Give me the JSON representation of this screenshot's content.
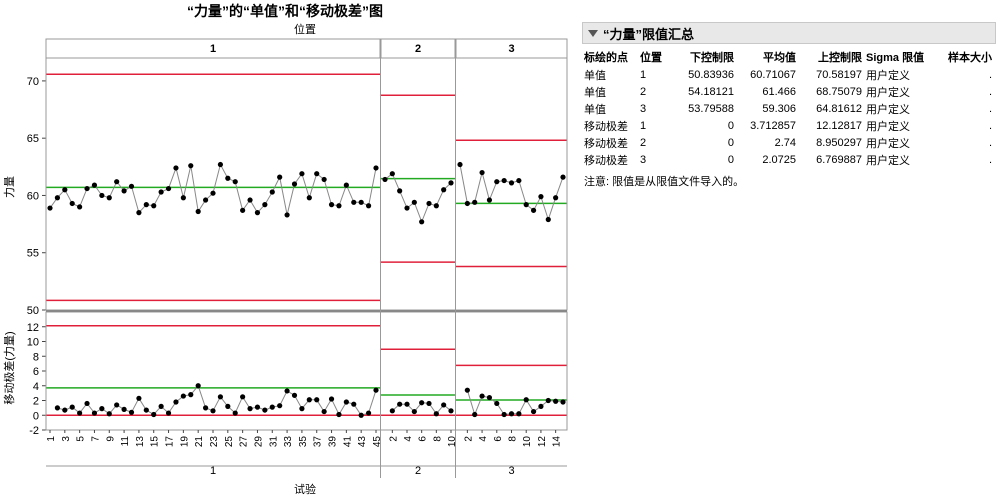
{
  "title": "“力量”的“单值”和“移动极差”图",
  "colors": {
    "limit": "#e0203a",
    "center": "#22aa22",
    "series": "#888888",
    "point": "#000000",
    "grid": "#bbbbbb"
  },
  "chart_data": {
    "type": "line",
    "title": "“力量”的“单值”和“移动极差”图",
    "group_axis_title": "位置",
    "xlabel": "试验",
    "phases": [
      {
        "label": "1",
        "x_ticks": [
          "1",
          "3",
          "5",
          "7",
          "9",
          "11",
          "13",
          "15",
          "17",
          "19",
          "21",
          "23",
          "25",
          "27",
          "29",
          "31",
          "33",
          "35",
          "37",
          "39",
          "41",
          "43",
          "45"
        ]
      },
      {
        "label": "2",
        "x_ticks": [
          "2",
          "4",
          "6",
          "8",
          "10"
        ]
      },
      {
        "label": "3",
        "x_ticks": [
          "2",
          "4",
          "6",
          "8",
          "10",
          "12",
          "14"
        ]
      }
    ],
    "individuals": {
      "ylabel": "力量",
      "y_ticks": [
        "50",
        "55",
        "60",
        "65",
        "70"
      ],
      "ylim": [
        50,
        72
      ],
      "phases": [
        {
          "lcl": 50.84,
          "avg": 60.71,
          "ucl": 70.58,
          "values": [
            58.9,
            59.8,
            60.5,
            59.3,
            59.0,
            60.6,
            60.9,
            60.0,
            59.8,
            61.2,
            60.4,
            60.8,
            58.5,
            59.2,
            59.1,
            60.3,
            60.6,
            62.4,
            59.8,
            62.6,
            58.6,
            59.6,
            60.2,
            62.7,
            61.5,
            61.2,
            58.7,
            59.6,
            58.5,
            59.2,
            60.3,
            61.6,
            58.3,
            61.0,
            61.9,
            59.8,
            61.9,
            61.4,
            59.2,
            59.1,
            60.9,
            59.4,
            59.4,
            59.1,
            62.4
          ]
        },
        {
          "lcl": 54.18,
          "avg": 61.47,
          "ucl": 68.75,
          "values": [
            61.4,
            61.9,
            60.4,
            58.9,
            59.4,
            57.7,
            59.3,
            59.1,
            60.5,
            61.1
          ]
        },
        {
          "lcl": 53.8,
          "avg": 59.31,
          "ucl": 64.82,
          "values": [
            62.7,
            59.3,
            59.4,
            62.0,
            59.6,
            61.2,
            61.3,
            61.1,
            61.3,
            59.2,
            58.7,
            59.9,
            57.9,
            59.8,
            61.6
          ]
        }
      ]
    },
    "moving_range": {
      "ylabel": "移动极差(力量)",
      "y_ticks": [
        "-2",
        "0",
        "2",
        "4",
        "6",
        "8",
        "10",
        "12"
      ],
      "ylim": [
        -2,
        14
      ],
      "phases": [
        {
          "lcl": 0,
          "avg": 3.71,
          "ucl": 12.13,
          "values": [
            null,
            1.0,
            0.7,
            1.1,
            0.3,
            1.6,
            0.3,
            0.9,
            0.2,
            1.4,
            0.8,
            0.4,
            2.3,
            0.7,
            0.1,
            1.2,
            0.3,
            1.8,
            2.6,
            2.8,
            4.0,
            1.0,
            0.6,
            2.5,
            1.2,
            0.3,
            2.5,
            0.9,
            1.1,
            0.7,
            1.1,
            1.3,
            3.3,
            2.7,
            0.9,
            2.1,
            2.1,
            0.5,
            2.2,
            0.1,
            1.8,
            1.5,
            0.0,
            0.3,
            3.4
          ]
        },
        {
          "lcl": 0,
          "avg": 2.74,
          "ucl": 8.95,
          "values": [
            null,
            0.6,
            1.5,
            1.5,
            0.5,
            1.7,
            1.6,
            0.2,
            1.4,
            0.6
          ]
        },
        {
          "lcl": 0,
          "avg": 2.07,
          "ucl": 6.77,
          "values": [
            null,
            3.4,
            0.1,
            2.6,
            2.4,
            1.6,
            0.1,
            0.2,
            0.2,
            2.1,
            0.5,
            1.2,
            2.0,
            1.9,
            1.8
          ]
        }
      ]
    }
  },
  "limits_panel": {
    "title": "“力量”限值汇总",
    "headers": {
      "point": "标绘的点",
      "pos": "位置",
      "lcl": "下控制限",
      "avg": "平均值",
      "ucl": "上控制限",
      "sigma": "Sigma 限值",
      "n": "样本大小"
    },
    "rows": [
      {
        "point": "单值",
        "pos": "1",
        "lcl": "50.83936",
        "avg": "60.71067",
        "ucl": "70.58197",
        "sigma": "用户定义",
        "n": "."
      },
      {
        "point": "单值",
        "pos": "2",
        "lcl": "54.18121",
        "avg": "61.466",
        "ucl": "68.75079",
        "sigma": "用户定义",
        "n": "."
      },
      {
        "point": "单值",
        "pos": "3",
        "lcl": "53.79588",
        "avg": "59.306",
        "ucl": "64.81612",
        "sigma": "用户定义",
        "n": "."
      },
      {
        "point": "移动极差",
        "pos": "1",
        "lcl": "0",
        "avg": "3.712857",
        "ucl": "12.12817",
        "sigma": "用户定义",
        "n": "."
      },
      {
        "point": "移动极差",
        "pos": "2",
        "lcl": "0",
        "avg": "2.74",
        "ucl": "8.950297",
        "sigma": "用户定义",
        "n": "."
      },
      {
        "point": "移动极差",
        "pos": "3",
        "lcl": "0",
        "avg": "2.0725",
        "ucl": "6.769887",
        "sigma": "用户定义",
        "n": "."
      }
    ],
    "note": "注意: 限值是从限值文件导入的。"
  }
}
